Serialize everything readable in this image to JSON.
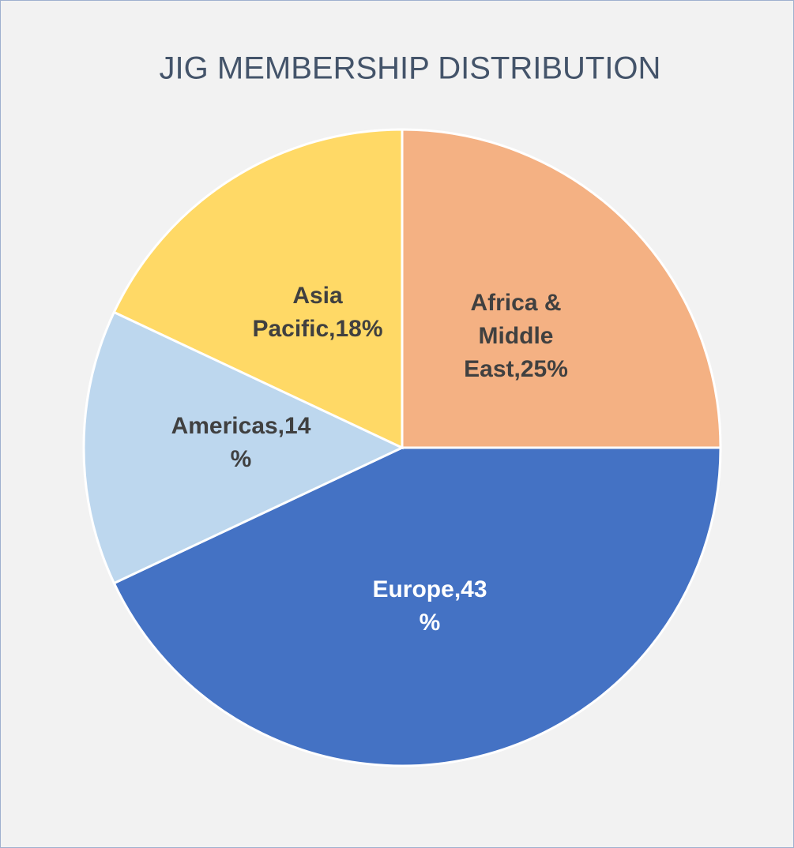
{
  "chart_data": {
    "type": "pie",
    "title": "JIG MEMBERSHIP DISTRIBUTION",
    "categories": [
      "Africa & Middle East",
      "Europe",
      "Americas",
      "Asia Pacific"
    ],
    "values": [
      25,
      43,
      14,
      18
    ],
    "value_labels": [
      "Africa & Middle East,25%",
      "Europe,43%",
      "Americas,14%",
      "Asia Pacific,18%"
    ],
    "colors": [
      "#f4b183",
      "#4472c4",
      "#bdd7ee",
      "#ffd966"
    ]
  }
}
